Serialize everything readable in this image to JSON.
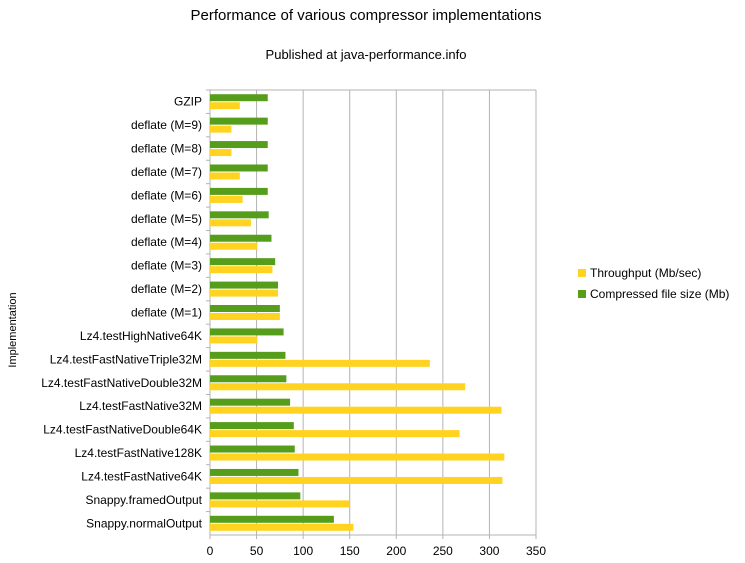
{
  "chart_data": {
    "type": "bar",
    "orientation": "horizontal",
    "title": "Performance of various compressor implementations",
    "subtitle": "Published at java-performance.info",
    "ylabel": "Implementation",
    "xlabel": "",
    "xlim": [
      0,
      350
    ],
    "xticks": [
      0,
      50,
      100,
      150,
      200,
      250,
      300,
      350
    ],
    "grid": "vertical",
    "legend_position": "right",
    "categories": [
      "GZIP",
      "deflate (M=9)",
      "deflate (M=8)",
      "deflate (M=7)",
      "deflate (M=6)",
      "deflate (M=5)",
      "deflate (M=4)",
      "deflate (M=3)",
      "deflate (M=2)",
      "deflate (M=1)",
      "Lz4.testHighNative64K",
      "Lz4.testFastNativeTriple32M",
      "Lz4.testFastNativeDouble32M",
      "Lz4.testFastNative32M",
      "Lz4.testFastNativeDouble64K",
      "Lz4.testFastNative128K",
      "Lz4.testFastNative64K",
      "Snappy.framedOutput",
      "Snappy.normalOutput"
    ],
    "series": [
      {
        "name": "Throughput (Mb/sec)",
        "color": "#ffd320",
        "values": [
          32,
          23,
          23,
          32,
          35,
          44,
          51,
          67,
          73,
          75,
          51,
          236,
          274,
          313,
          268,
          316,
          314,
          150,
          154
        ]
      },
      {
        "name": "Compressed file size (Mb)",
        "color": "#579d1c",
        "values": [
          62,
          62,
          62,
          62,
          62,
          63,
          66,
          70,
          73,
          75,
          79,
          81,
          82,
          86,
          90,
          91,
          95,
          97,
          133
        ]
      }
    ]
  }
}
